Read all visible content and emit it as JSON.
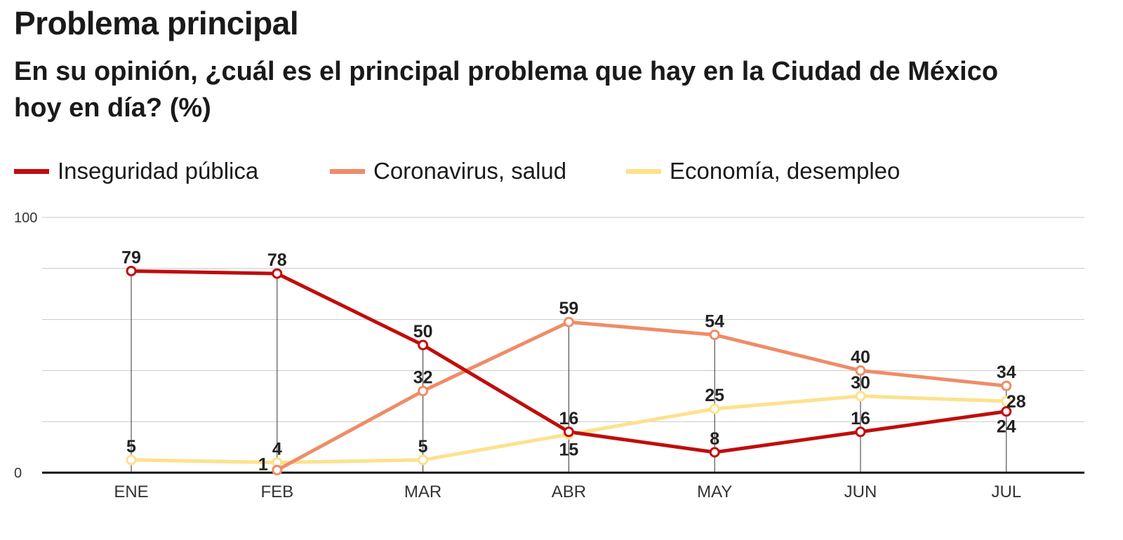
{
  "title": "Problema principal",
  "subtitle": "En su opinión, ¿cuál es el principal problema que hay en la Ciudad de México hoy en día?  (%)",
  "chart_data": {
    "type": "line",
    "title": "Problema principal",
    "subtitle": "En su opinión, ¿cuál es el principal problema que hay en la Ciudad de México hoy en día?  (%)",
    "categories": [
      "ENE",
      "FEB",
      "MAR",
      "ABR",
      "MAY",
      "JUN",
      "JUL"
    ],
    "ylim": [
      0,
      100
    ],
    "yticks": [
      0,
      100
    ],
    "grid": true,
    "legend": "top-left",
    "series": [
      {
        "name": "Inseguridad pública",
        "color": "#c00d0d",
        "values": [
          79,
          78,
          50,
          16,
          8,
          16,
          24
        ]
      },
      {
        "name": "Coronavirus, salud",
        "color": "#ef8c68",
        "values": [
          null,
          1,
          32,
          59,
          54,
          40,
          34
        ]
      },
      {
        "name": "Economía, desempleo",
        "color": "#fde18c",
        "values": [
          5,
          4,
          5,
          15,
          25,
          30,
          28
        ]
      }
    ]
  }
}
